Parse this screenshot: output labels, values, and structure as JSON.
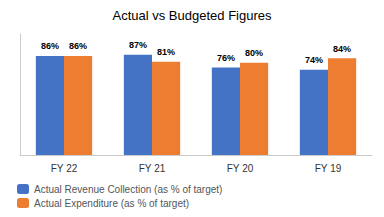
{
  "chart_data": {
    "type": "bar",
    "title": "Actual vs Budgeted Figures",
    "categories": [
      "FY 22",
      "FY 21",
      "FY 20",
      "FY 19"
    ],
    "series": [
      {
        "name": "Actual Revenue Collection (as % of target)",
        "color": "#4472C4",
        "values": [
          86,
          87,
          76,
          74
        ],
        "value_labels": [
          "86%",
          "87%",
          "76%",
          "74%"
        ]
      },
      {
        "name": "Actual Expenditure (as % of target)",
        "color": "#ED7D31",
        "values": [
          86,
          81,
          80,
          84
        ],
        "value_labels": [
          "86%",
          "81%",
          "80%",
          "84%"
        ]
      }
    ],
    "ylim": [
      0,
      105
    ],
    "grid": false,
    "legend": "lower left",
    "data_labels": true,
    "tick_labels": "x"
  }
}
